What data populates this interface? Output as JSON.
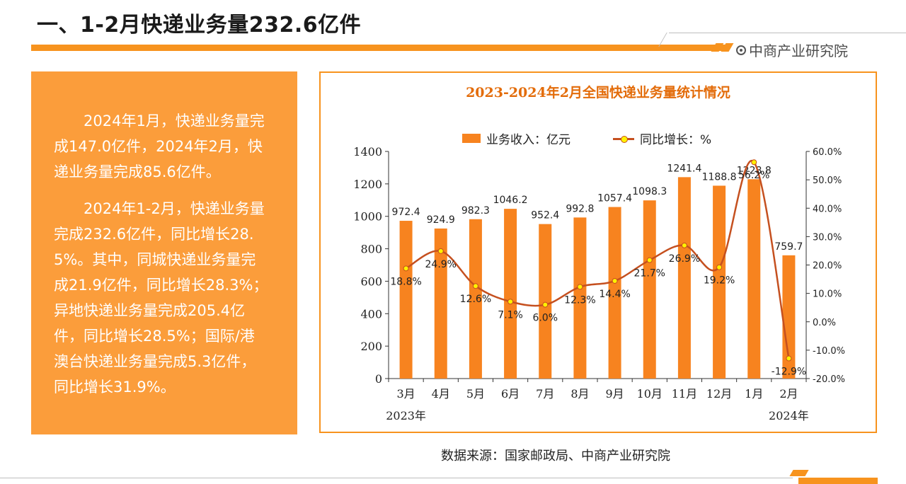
{
  "header": {
    "title": "一、1-2月快递业务量232.6亿件",
    "brand": "中商产业研究院"
  },
  "summary": {
    "paragraphs": [
      "2024年1月，快递业务量完成147.0亿件，2024年2月，快递业务量完成85.6亿件。",
      "2024年1-2月，快递业务量完成232.6亿件，同比增长28.5%。其中，同城快递业务量完成21.9亿件，同比增长28.3%；异地快递业务量完成205.4亿件，同比增长28.5%；国际/港澳台快递业务量完成5.3亿件，同比增长31.9%。"
    ]
  },
  "chart_data": {
    "type": "bar",
    "title": "2023-2024年2月全国快递业务量统计情况",
    "categories": [
      "3月",
      "4月",
      "5月",
      "6月",
      "7月",
      "8月",
      "9月",
      "10月",
      "11月",
      "12月",
      "1月",
      "2月"
    ],
    "year_labels": [
      {
        "text": "2023年",
        "category_index": 0
      },
      {
        "text": "2024年",
        "category_index": 11
      }
    ],
    "series": [
      {
        "name": "业务收入：亿元",
        "type": "bar",
        "axis": "left",
        "color": "#f7831f",
        "values": [
          972.4,
          924.9,
          982.3,
          1046.2,
          952.4,
          992.8,
          1057.4,
          1098.3,
          1241.4,
          1188.8,
          1228.8,
          759.7
        ],
        "labels": [
          "972.4",
          "924.9",
          "982.3",
          "1046.2",
          "952.4",
          "992.8",
          "1057.4",
          "1098.3",
          "1241.4",
          "1188.8",
          "1228.8",
          "759.7"
        ]
      },
      {
        "name": "同比增长：%",
        "type": "line",
        "axis": "right",
        "color": "#c5501f",
        "marker_color": "#fff200",
        "values": [
          18.8,
          24.9,
          12.6,
          7.1,
          6.0,
          12.3,
          14.4,
          21.7,
          26.9,
          19.2,
          56.2,
          -12.9
        ],
        "labels": [
          "18.8%",
          "24.9%",
          "12.6%",
          "7.1%",
          "6.0%",
          "12.3%",
          "14.4%",
          "21.7%",
          "26.9%",
          "19.2%",
          "56.2%",
          "-12.9%"
        ]
      }
    ],
    "y_left": {
      "min": 0,
      "max": 1400,
      "ticks": [
        "0",
        "200",
        "400",
        "600",
        "800",
        "1000",
        "1200",
        "1400"
      ]
    },
    "y_right": {
      "min": -20,
      "max": 60,
      "ticks": [
        "-20.0%",
        "-10.0%",
        "0.0%",
        "10.0%",
        "20.0%",
        "30.0%",
        "40.0%",
        "50.0%",
        "60.0%"
      ]
    },
    "grid": false,
    "legend": "top"
  },
  "footer": {
    "source": "数据来源：国家邮政局、中商产业研究院"
  }
}
